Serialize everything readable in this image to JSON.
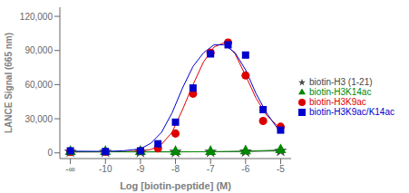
{
  "chart_data": {
    "type": "scatter",
    "xlabel": "Log [biotin-peptide] (M)",
    "ylabel": "LANCE Signal (665 nm)",
    "xlim": [
      -11.3,
      -4.7
    ],
    "xticks": [
      {
        "value": -11,
        "label": "-∞"
      },
      -10,
      -9,
      -8,
      -7,
      -6,
      -5
    ],
    "ylim": [
      -5000,
      128000
    ],
    "yticks": [
      0,
      {
        "value": 30000,
        "label": "30,000"
      },
      {
        "value": 60000,
        "label": "60,000"
      },
      {
        "value": 90000,
        "label": "90,000"
      },
      {
        "value": 120000,
        "label": "120,000"
      }
    ],
    "grid": false,
    "legend": "right",
    "series": [
      {
        "name": "biotin-H3 (1-21)",
        "color": "#444444",
        "marker": "star",
        "x": [
          -11,
          -10,
          -9,
          -8,
          -7,
          -6,
          -5
        ],
        "values": [
          1000,
          1000,
          900,
          900,
          1000,
          1200,
          1800
        ],
        "yerr": [
          150,
          150,
          150,
          150,
          150,
          200,
          250
        ],
        "curve_x": [
          -11,
          -10.5,
          -10,
          -9.5,
          -9,
          -8.5,
          -8,
          -7.5,
          -7,
          -6.5,
          -6,
          -5.5,
          -5
        ],
        "curve_y": [
          950,
          950,
          950,
          950,
          900,
          900,
          900,
          950,
          1000,
          1100,
          1200,
          1500,
          1800
        ]
      },
      {
        "name": "biotin-H3K9ac",
        "color": "#dd0000",
        "marker": "circle",
        "x": [
          -11,
          -10,
          -9,
          -8.5,
          -8,
          -7.5,
          -7,
          -6.5,
          -6,
          -5.5,
          -5
        ],
        "values": [
          800,
          900,
          1500,
          4000,
          17000,
          52000,
          88000,
          97000,
          68000,
          28000,
          23000
        ],
        "yerr": [
          150,
          150,
          300,
          600,
          1500,
          2500,
          2500,
          2500,
          2500,
          1500,
          1500
        ],
        "curve_x": [
          -11,
          -10.5,
          -10,
          -9.5,
          -9,
          -8.7,
          -8.4,
          -8.1,
          -7.8,
          -7.5,
          -7.2,
          -6.9,
          -6.6,
          -6.3,
          -6.0,
          -5.7,
          -5.4,
          -5.1,
          -5.0
        ],
        "curve_y": [
          800,
          850,
          900,
          1100,
          1500,
          3000,
          7500,
          18000,
          38000,
          60000,
          80000,
          93000,
          97000,
          87000,
          68000,
          48000,
          33000,
          24000,
          22000
        ]
      },
      {
        "name": "biotin-H3K14ac",
        "color": "#008800",
        "marker": "triangle",
        "x": [
          -11,
          -10,
          -9,
          -8,
          -7,
          -6,
          -5
        ],
        "values": [
          900,
          900,
          900,
          900,
          1000,
          1500,
          2500
        ],
        "yerr": [
          150,
          150,
          150,
          150,
          150,
          250,
          350
        ],
        "curve_x": [
          -11,
          -10.5,
          -10,
          -9.5,
          -9,
          -8.5,
          -8,
          -7.5,
          -7,
          -6.5,
          -6,
          -5.5,
          -5
        ],
        "curve_y": [
          900,
          900,
          900,
          900,
          900,
          900,
          900,
          950,
          1000,
          1200,
          1500,
          2000,
          2500
        ]
      },
      {
        "name": "biotin-H3K9ac/K14ac",
        "color": "#0000cc",
        "marker": "square",
        "x": [
          -11,
          -10,
          -9,
          -8.5,
          -8,
          -7.5,
          -7,
          -6.5,
          -6,
          -5.5,
          -5
        ],
        "values": [
          1800,
          1200,
          1800,
          8000,
          27000,
          57000,
          87000,
          95000,
          86000,
          38000,
          20000
        ],
        "yerr": [
          300,
          200,
          300,
          1000,
          2000,
          2500,
          2500,
          2500,
          2500,
          2500,
          1500
        ],
        "curve_x": [
          -11,
          -10.5,
          -10,
          -9.5,
          -9,
          -8.7,
          -8.4,
          -8.1,
          -7.8,
          -7.5,
          -7.2,
          -6.9,
          -6.6,
          -6.3,
          -6.0,
          -5.7,
          -5.4,
          -5.1,
          -5.0
        ],
        "curve_y": [
          1500,
          1400,
          1300,
          1800,
          3500,
          8500,
          18000,
          35000,
          57000,
          76000,
          88000,
          95000,
          95000,
          88000,
          73000,
          52000,
          35000,
          22000,
          19000
        ]
      }
    ]
  }
}
